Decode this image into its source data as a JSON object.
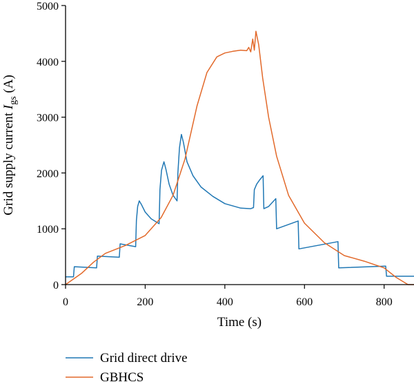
{
  "chart_data": {
    "type": "line",
    "xlabel": "Time (s)",
    "ylabel_main": "Grid supply current ",
    "ylabel_symbol": "I",
    "ylabel_subscript": "gs",
    "ylabel_unit": " (A)",
    "xlim": [
      0,
      875
    ],
    "ylim": [
      0,
      5000
    ],
    "x_ticks": [
      0,
      200,
      400,
      600,
      800
    ],
    "y_ticks": [
      0,
      1000,
      2000,
      3000,
      4000,
      5000
    ],
    "grid": false,
    "legend_placement": "bottom-left",
    "series": [
      {
        "name": "Grid direct drive",
        "color": "#1f77b4",
        "points": [
          [
            0,
            140
          ],
          [
            20,
            140
          ],
          [
            22,
            320
          ],
          [
            78,
            300
          ],
          [
            80,
            510
          ],
          [
            135,
            490
          ],
          [
            137,
            730
          ],
          [
            176,
            680
          ],
          [
            178,
            1150
          ],
          [
            181,
            1400
          ],
          [
            185,
            1500
          ],
          [
            190,
            1440
          ],
          [
            200,
            1300
          ],
          [
            215,
            1180
          ],
          [
            235,
            1090
          ],
          [
            237,
            1700
          ],
          [
            241,
            2050
          ],
          [
            247,
            2200
          ],
          [
            252,
            2070
          ],
          [
            260,
            1800
          ],
          [
            270,
            1600
          ],
          [
            280,
            1500
          ],
          [
            282,
            2000
          ],
          [
            286,
            2450
          ],
          [
            291,
            2690
          ],
          [
            296,
            2550
          ],
          [
            305,
            2200
          ],
          [
            320,
            1950
          ],
          [
            340,
            1750
          ],
          [
            370,
            1580
          ],
          [
            400,
            1450
          ],
          [
            440,
            1370
          ],
          [
            465,
            1360
          ],
          [
            472,
            1380
          ],
          [
            474,
            1700
          ],
          [
            480,
            1800
          ],
          [
            488,
            1880
          ],
          [
            496,
            1950
          ],
          [
            498,
            1360
          ],
          [
            510,
            1400
          ],
          [
            528,
            1540
          ],
          [
            530,
            1000
          ],
          [
            584,
            1140
          ],
          [
            586,
            640
          ],
          [
            684,
            770
          ],
          [
            686,
            300
          ],
          [
            804,
            330
          ],
          [
            806,
            150
          ],
          [
            875,
            150
          ]
        ]
      },
      {
        "name": "GBHCS",
        "color": "#e2692a",
        "points": [
          [
            0,
            0
          ],
          [
            40,
            200
          ],
          [
            70,
            400
          ],
          [
            100,
            560
          ],
          [
            150,
            700
          ],
          [
            200,
            880
          ],
          [
            240,
            1200
          ],
          [
            270,
            1600
          ],
          [
            300,
            2250
          ],
          [
            330,
            3200
          ],
          [
            355,
            3800
          ],
          [
            380,
            4080
          ],
          [
            400,
            4150
          ],
          [
            420,
            4180
          ],
          [
            440,
            4200
          ],
          [
            455,
            4190
          ],
          [
            460,
            4250
          ],
          [
            465,
            4170
          ],
          [
            470,
            4400
          ],
          [
            474,
            4200
          ],
          [
            478,
            4540
          ],
          [
            485,
            4300
          ],
          [
            495,
            3700
          ],
          [
            510,
            3000
          ],
          [
            530,
            2300
          ],
          [
            560,
            1600
          ],
          [
            600,
            1100
          ],
          [
            650,
            750
          ],
          [
            700,
            520
          ],
          [
            750,
            420
          ],
          [
            800,
            300
          ],
          [
            830,
            130
          ],
          [
            860,
            0
          ],
          [
            875,
            0
          ]
        ]
      }
    ]
  }
}
